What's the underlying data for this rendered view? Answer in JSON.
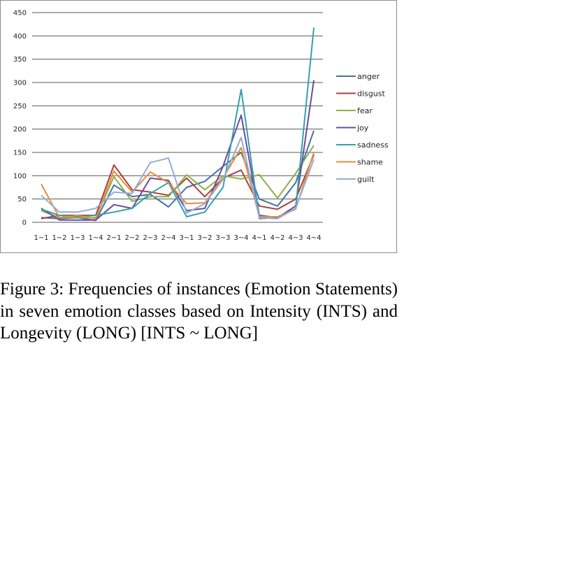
{
  "chart_data": {
    "type": "line",
    "categories": [
      "1~1",
      "1~2",
      "1~3",
      "1~4",
      "2~1",
      "2~2",
      "2~3",
      "2~4",
      "3~1",
      "3~2",
      "3~3",
      "3~4",
      "4~1",
      "4~2",
      "4~3",
      "4~4"
    ],
    "ylim": [
      0,
      450
    ],
    "yticks": [
      0,
      50,
      100,
      150,
      200,
      250,
      300,
      350,
      400,
      450
    ],
    "grid": "horizontal",
    "legend_position": "right",
    "series": [
      {
        "name": "anger",
        "color": "#4472a8",
        "values": [
          10,
          8,
          10,
          4,
          80,
          55,
          60,
          33,
          75,
          88,
          120,
          150,
          50,
          35,
          85,
          197
        ]
      },
      {
        "name": "disgust",
        "color": "#a8403c",
        "values": [
          8,
          15,
          15,
          15,
          123,
          70,
          65,
          58,
          95,
          55,
          95,
          112,
          35,
          28,
          50,
          145
        ]
      },
      {
        "name": "fear",
        "color": "#8cb048",
        "values": [
          25,
          10,
          10,
          10,
          98,
          45,
          55,
          55,
          102,
          70,
          100,
          93,
          102,
          52,
          105,
          165
        ]
      },
      {
        "name": "joy",
        "color": "#6c4c98",
        "values": [
          30,
          5,
          5,
          5,
          38,
          30,
          95,
          90,
          25,
          30,
          120,
          230,
          15,
          10,
          35,
          305
        ]
      },
      {
        "name": "sadness",
        "color": "#34a0b0",
        "values": [
          28,
          15,
          12,
          15,
          22,
          30,
          62,
          85,
          12,
          22,
          75,
          285,
          8,
          10,
          30,
          418
        ]
      },
      {
        "name": "shame",
        "color": "#e88c34",
        "values": [
          82,
          10,
          15,
          8,
          110,
          65,
          108,
          85,
          40,
          42,
          95,
          160,
          12,
          12,
          28,
          150
        ]
      },
      {
        "name": "guilt",
        "color": "#94acd8",
        "values": [
          58,
          22,
          22,
          30,
          65,
          62,
          128,
          138,
          20,
          40,
          92,
          182,
          10,
          8,
          30,
          135
        ]
      }
    ]
  },
  "caption": "Figure 3: Frequencies of instances (Emotion Statements) in seven emotion classes based on Intensity (INTS) and Longevity (LONG) [INTS ~ LONG]"
}
